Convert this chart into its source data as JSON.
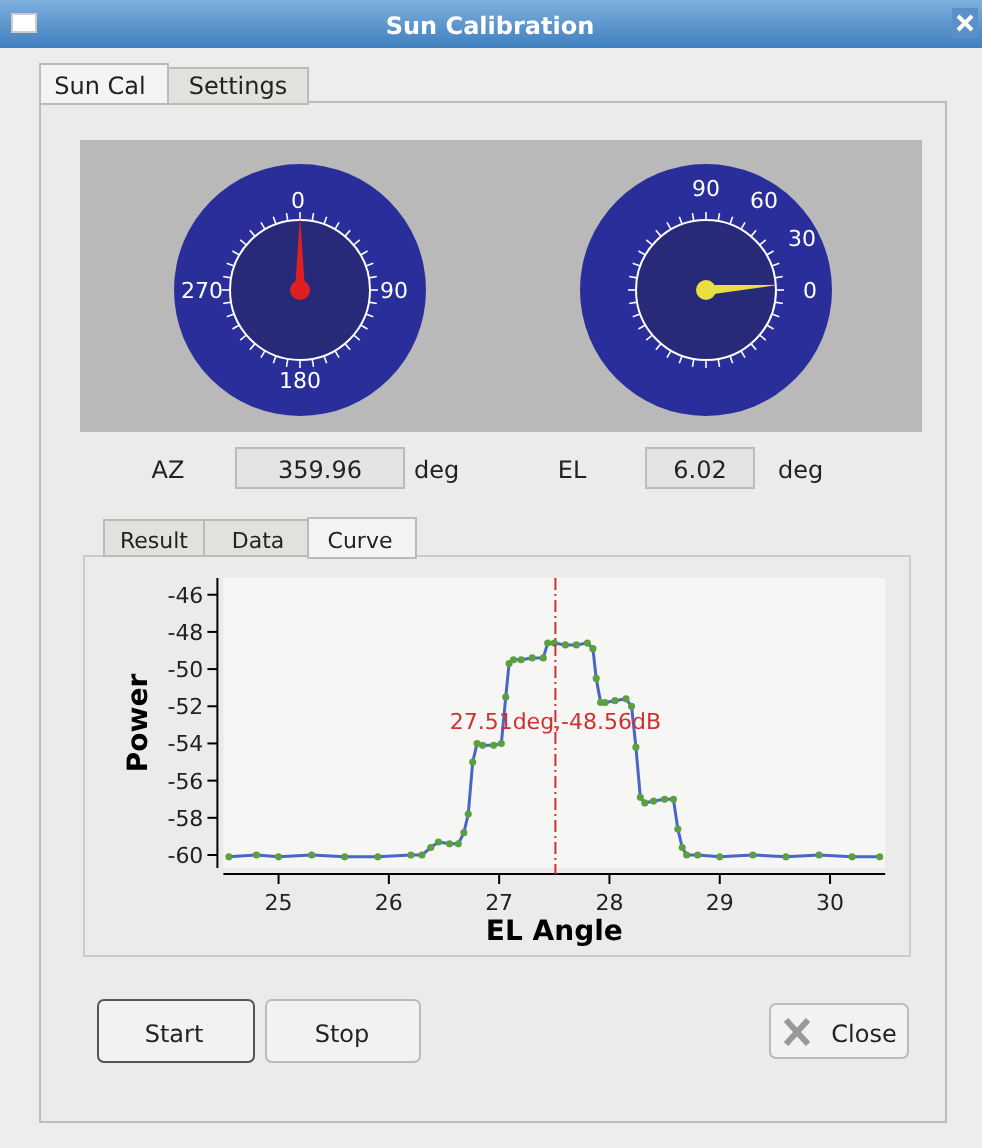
{
  "chart_data": [
    {
      "type": "other",
      "title": "Sun Calibration",
      "annotations": [
        "Sun Cal",
        "Settings",
        "0",
        "90",
        "180",
        "270",
        "90",
        "60",
        "30",
        "0",
        "AZ",
        "359.96",
        "deg",
        "EL",
        "6.02",
        "deg",
        "Result",
        "Data",
        "Curve",
        "Start",
        "Stop",
        "Close"
      ]
    },
    {
      "type": "line",
      "xlabel": "EL Angle",
      "ylabel": "Power",
      "xlim": [
        24.5,
        30.5
      ],
      "xticks": [
        25,
        26,
        27,
        28,
        29,
        30
      ],
      "ylim": [
        -60.7,
        -45.1
      ],
      "yticks": [
        -46,
        -48,
        -50,
        -52,
        -54,
        -56,
        -58,
        -60
      ],
      "grid": false,
      "ref_lines": [
        {
          "axis": "x",
          "value": 27.51,
          "label": "27.51deg,-48.56dB",
          "color": "#d03030",
          "line_style": "dashed"
        }
      ],
      "x": [
        24.55,
        24.8,
        25.0,
        25.3,
        25.6,
        25.9,
        26.2,
        26.3,
        26.38,
        26.45,
        26.55,
        26.63,
        26.68,
        26.72,
        26.76,
        26.8,
        26.85,
        26.95,
        27.02,
        27.06,
        27.09,
        27.13,
        27.2,
        27.3,
        27.4,
        27.44,
        27.5,
        27.6,
        27.7,
        27.8,
        27.85,
        27.88,
        27.92,
        27.96,
        28.05,
        28.15,
        28.2,
        28.24,
        28.28,
        28.32,
        28.4,
        28.5,
        28.58,
        28.62,
        28.66,
        28.7,
        28.8,
        29.0,
        29.3,
        29.6,
        29.9,
        30.2,
        30.45
      ],
      "series": [
        {
          "type": "line",
          "color": "#4a64c8",
          "marker": "none",
          "values": [
            -60.1,
            -60.0,
            -60.1,
            -60.0,
            -60.1,
            -60.1,
            -60.0,
            -60.0,
            -59.6,
            -59.3,
            -59.4,
            -59.4,
            -58.8,
            -57.8,
            -55.0,
            -54.0,
            -54.1,
            -54.1,
            -54.0,
            -51.5,
            -49.7,
            -49.5,
            -49.5,
            -49.4,
            -49.4,
            -48.6,
            -48.6,
            -48.7,
            -48.7,
            -48.6,
            -48.9,
            -50.5,
            -51.8,
            -51.8,
            -51.7,
            -51.6,
            -52.0,
            -54.2,
            -56.9,
            -57.2,
            -57.1,
            -57.0,
            -57.0,
            -58.6,
            -59.6,
            -60.0,
            -60.0,
            -60.1,
            -60.0,
            -60.1,
            -60.0,
            -60.1,
            -60.1
          ]
        },
        {
          "type": "scatter",
          "color": "#5aa040",
          "marker": "circle",
          "values": [
            -60.1,
            -60.0,
            -60.1,
            -60.0,
            -60.1,
            -60.1,
            -60.0,
            -60.0,
            -59.6,
            -59.3,
            -59.4,
            -59.4,
            -58.8,
            -57.8,
            -55.0,
            -54.0,
            -54.1,
            -54.1,
            -54.0,
            -51.5,
            -49.7,
            -49.5,
            -49.5,
            -49.4,
            -49.4,
            -48.6,
            -48.6,
            -48.7,
            -48.7,
            -48.6,
            -48.9,
            -50.5,
            -51.8,
            -51.8,
            -51.7,
            -51.6,
            -52.0,
            -54.2,
            -56.9,
            -57.2,
            -57.1,
            -57.0,
            -57.0,
            -58.6,
            -59.6,
            -60.0,
            -60.0,
            -60.1,
            -60.0,
            -60.1,
            -60.0,
            -60.1,
            -60.1
          ]
        }
      ]
    }
  ]
}
